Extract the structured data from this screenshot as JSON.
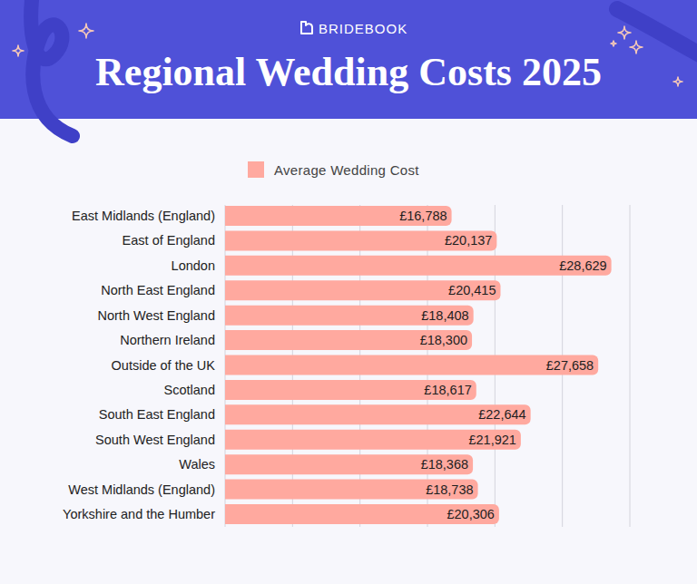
{
  "header": {
    "brand": "BRIDEBOOK"
  },
  "chart_data": {
    "type": "bar",
    "orientation": "horizontal",
    "title": "Regional Wedding Costs 2025",
    "categories": [
      "East Midlands (England)",
      "East of England",
      "London",
      "North East England",
      "North West England",
      "Northern Ireland",
      "Outside of the UK",
      "Scotland",
      "South East England",
      "South West England",
      "Wales",
      "West Midlands (England)",
      "Yorkshire and the Humber"
    ],
    "series": [
      {
        "name": "Average Wedding Cost",
        "color": "#ffa99f",
        "values": [
          16788,
          20137,
          28629,
          20415,
          18408,
          18300,
          27658,
          18617,
          22644,
          21921,
          18368,
          18738,
          20306
        ],
        "value_labels": [
          "£16,788",
          "£20,137",
          "£28,629",
          "£20,415",
          "£18,408",
          "£18,300",
          "£27,658",
          "£18,617",
          "£22,644",
          "£21,921",
          "£18,368",
          "£18,738",
          "£20,306"
        ]
      }
    ],
    "xlim": [
      0,
      30000
    ],
    "xticks": [
      0,
      5000,
      10000,
      15000,
      20000,
      25000,
      30000
    ],
    "grid": true,
    "legend": "top",
    "data_labels": true,
    "tick_labels": "y"
  }
}
